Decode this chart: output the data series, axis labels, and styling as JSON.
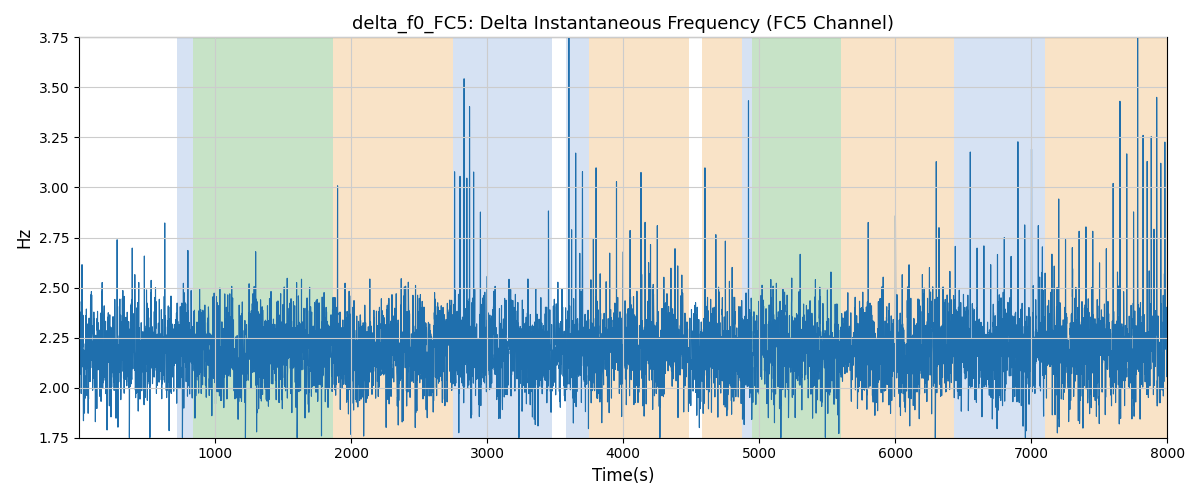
{
  "title": "delta_f0_FC5: Delta Instantaneous Frequency (FC5 Channel)",
  "xlabel": "Time(s)",
  "ylabel": "Hz",
  "xlim": [
    0,
    8000
  ],
  "ylim": [
    1.75,
    3.75
  ],
  "yticks": [
    1.75,
    2.0,
    2.25,
    2.5,
    2.75,
    3.0,
    3.25,
    3.5,
    3.75
  ],
  "xticks": [
    1000,
    2000,
    3000,
    4000,
    5000,
    6000,
    7000,
    8000
  ],
  "line_color": "#1f6fad",
  "line_width": 0.8,
  "background_color": "#ffffff",
  "grid_color": "#cccccc",
  "bands": [
    {
      "start": 720,
      "end": 840,
      "color": "#aec6e8",
      "alpha": 0.5
    },
    {
      "start": 840,
      "end": 1870,
      "color": "#90c990",
      "alpha": 0.5
    },
    {
      "start": 1870,
      "end": 2750,
      "color": "#f5c890",
      "alpha": 0.5
    },
    {
      "start": 2750,
      "end": 3480,
      "color": "#aec6e8",
      "alpha": 0.5
    },
    {
      "start": 3580,
      "end": 3750,
      "color": "#aec6e8",
      "alpha": 0.5
    },
    {
      "start": 3750,
      "end": 4480,
      "color": "#f5c890",
      "alpha": 0.5
    },
    {
      "start": 4580,
      "end": 4870,
      "color": "#f5c890",
      "alpha": 0.5
    },
    {
      "start": 4870,
      "end": 4950,
      "color": "#aec6e8",
      "alpha": 0.5
    },
    {
      "start": 4950,
      "end": 5600,
      "color": "#90c990",
      "alpha": 0.5
    },
    {
      "start": 5600,
      "end": 6430,
      "color": "#f5c890",
      "alpha": 0.5
    },
    {
      "start": 6430,
      "end": 7100,
      "color": "#aec6e8",
      "alpha": 0.5
    },
    {
      "start": 7100,
      "end": 8000,
      "color": "#f5c890",
      "alpha": 0.5
    }
  ],
  "seed": 12345,
  "time_start": 0,
  "time_end": 8000,
  "n_points": 8000,
  "base_value": 2.18,
  "noise_std": 0.13
}
